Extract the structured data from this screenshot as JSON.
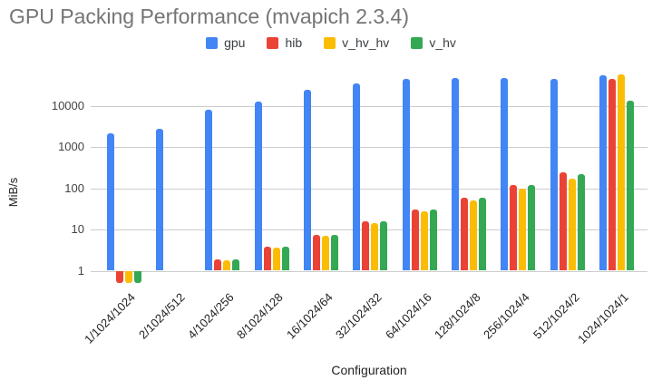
{
  "title": "GPU Packing Performance (mvapich 2.3.4)",
  "chart_data": {
    "type": "bar",
    "title": "GPU Packing Performance (mvapich 2.3.4)",
    "xlabel": "Configuration",
    "ylabel": "MiB/s",
    "y_scale": "log",
    "y_ticks": [
      1,
      10,
      100,
      1000,
      10000
    ],
    "ylim": [
      0.48,
      64000
    ],
    "baseline": 1,
    "grid": true,
    "legend_position": "top",
    "categories": [
      "1/1024/1024",
      "2/1024/512",
      "4/1024/256",
      "8/1024/128",
      "16/1024/64",
      "32/1024/32",
      "64/1024/16",
      "128/1024/8",
      "256/1024/4",
      "512/1024/2",
      "1024/1024/1"
    ],
    "series": [
      {
        "name": "gpu",
        "color": "#4285F4",
        "values": [
          2200,
          2800,
          8100,
          12500,
          24000,
          35000,
          44000,
          46500,
          47000,
          46000,
          54000
        ]
      },
      {
        "name": "hib",
        "color": "#EA4335",
        "values": [
          0.5,
          null,
          1.9,
          3.9,
          7.4,
          16,
          31,
          60,
          118,
          240,
          44000
        ]
      },
      {
        "name": "v_hv_hv",
        "color": "#FBBC04",
        "values": [
          0.5,
          null,
          1.8,
          3.7,
          6.9,
          14.5,
          28,
          52,
          97,
          170,
          57000
        ]
      },
      {
        "name": "v_hv",
        "color": "#34A853",
        "values": [
          0.5,
          null,
          1.9,
          3.9,
          7.4,
          16,
          31,
          60,
          122,
          220,
          13500
        ]
      }
    ]
  },
  "colors": {
    "title": "#757575",
    "grid": "#cccccc",
    "y_tick": "#444444",
    "x_tick": "#222222",
    "axis_title": "#222222"
  }
}
